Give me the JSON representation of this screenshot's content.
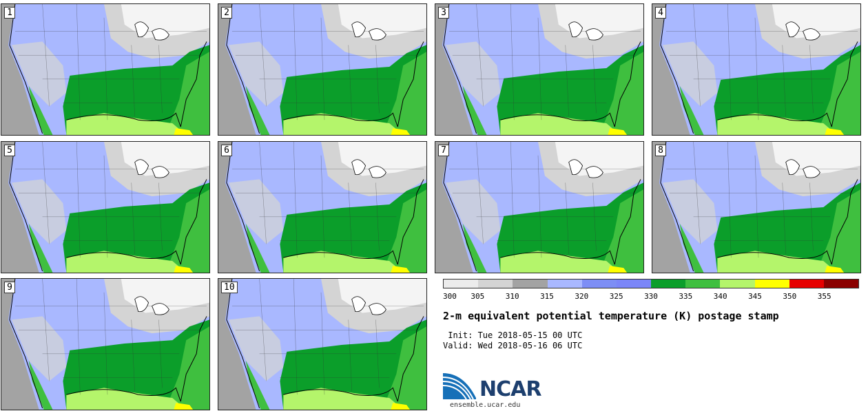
{
  "stamps": [
    {
      "number": "1"
    },
    {
      "number": "2"
    },
    {
      "number": "3"
    },
    {
      "number": "4"
    },
    {
      "number": "5"
    },
    {
      "number": "6"
    },
    {
      "number": "7"
    },
    {
      "number": "8"
    },
    {
      "number": "9"
    },
    {
      "number": "10"
    }
  ],
  "colorbar": {
    "colors": [
      "#ececec",
      "#d4d4d4",
      "#a3a3a3",
      "#a9b8ff",
      "#7d8ef5",
      "#7b86f8",
      "#0b9e2a",
      "#3fbf3f",
      "#b4f56b",
      "#ffff00",
      "#e60000",
      "#8a0000"
    ],
    "labels": [
      "300",
      "305",
      "310",
      "315",
      "320",
      "325",
      "330",
      "335",
      "340",
      "345",
      "350",
      "355"
    ]
  },
  "title": "2-m equivalent potential temperature (K) postage stamp",
  "init": " Init: Tue 2018-05-15 00 UTC",
  "valid": "Valid: Wed 2018-05-16 06 UTC",
  "logo": {
    "name": "NCAR",
    "url": "ensemble.ucar.edu"
  }
}
